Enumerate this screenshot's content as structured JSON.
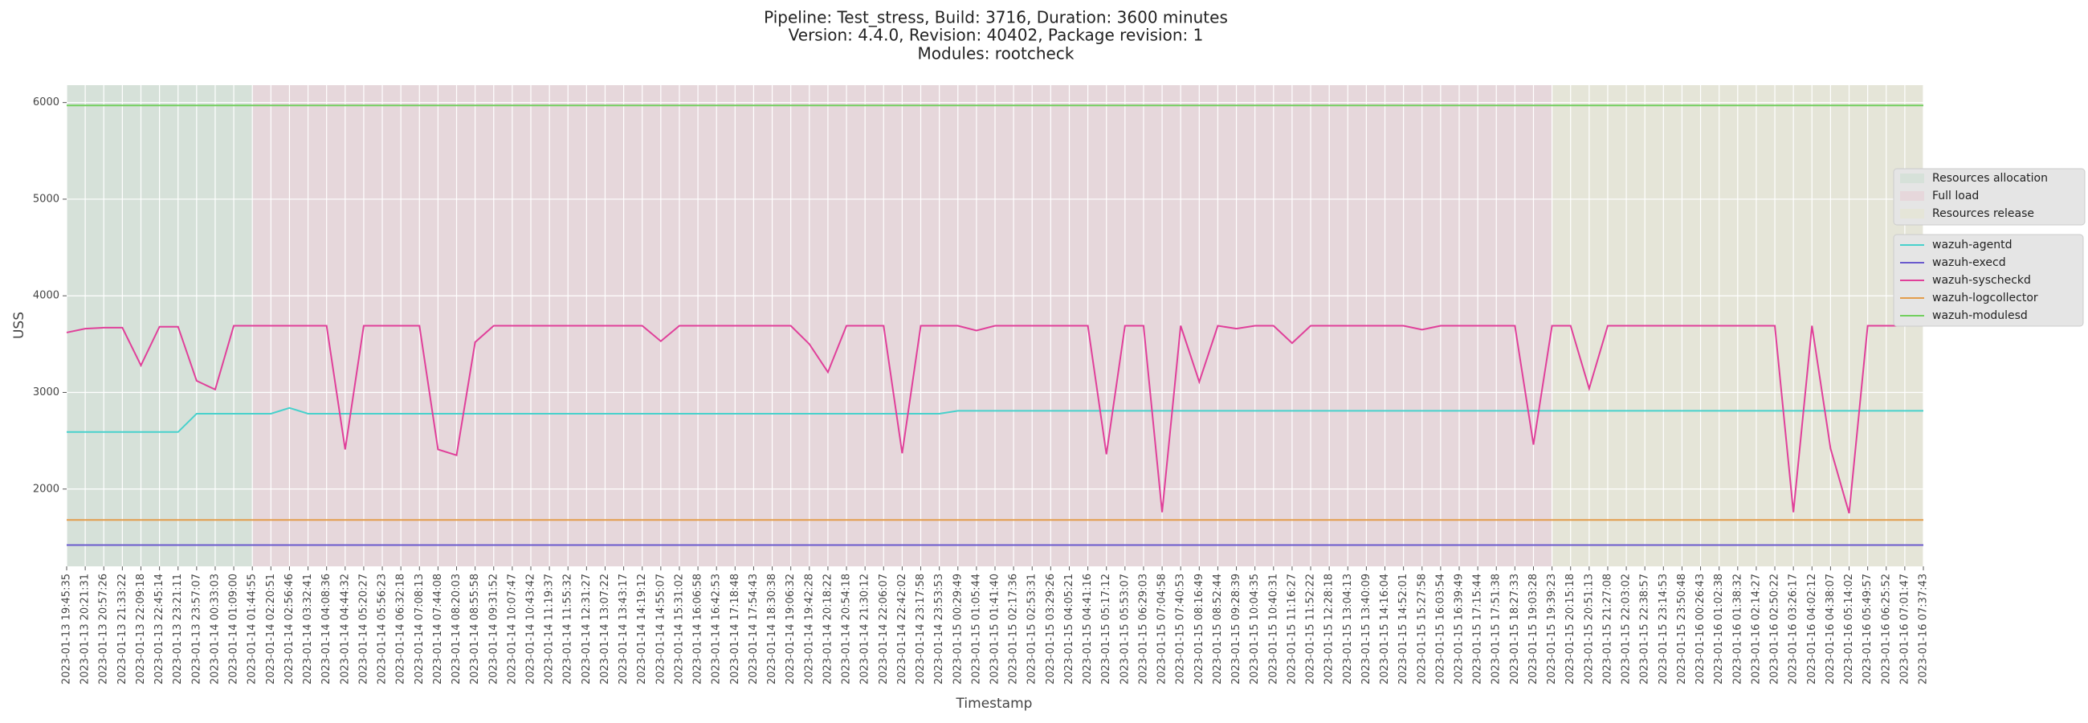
{
  "chart_data": {
    "type": "line",
    "title": [
      "Pipeline: Test_stress, Build: 3716, Duration: 3600 minutes",
      "Version: 4.4.0, Revision: 40402, Package revision: 1",
      "Modules: rootcheck"
    ],
    "xlabel": "Timestamp",
    "ylabel": "USS",
    "ylim": [
      1200,
      6180
    ],
    "yticks": [
      2000,
      3000,
      4000,
      5000,
      6000
    ],
    "grid": true,
    "categories": [
      "2023-01-13 19:45:35",
      "2023-01-13 20:21:31",
      "2023-01-13 20:57:26",
      "2023-01-13 21:33:22",
      "2023-01-13 22:09:18",
      "2023-01-13 22:45:14",
      "2023-01-13 23:21:11",
      "2023-01-13 23:57:07",
      "2023-01-14 00:33:03",
      "2023-01-14 01:09:00",
      "2023-01-14 01:44:55",
      "2023-01-14 02:20:51",
      "2023-01-14 02:56:46",
      "2023-01-14 03:32:41",
      "2023-01-14 04:08:36",
      "2023-01-14 04:44:32",
      "2023-01-14 05:20:27",
      "2023-01-14 05:56:23",
      "2023-01-14 06:32:18",
      "2023-01-14 07:08:13",
      "2023-01-14 07:44:08",
      "2023-01-14 08:20:03",
      "2023-01-14 08:55:58",
      "2023-01-14 09:31:52",
      "2023-01-14 10:07:47",
      "2023-01-14 10:43:42",
      "2023-01-14 11:19:37",
      "2023-01-14 11:55:32",
      "2023-01-14 12:31:27",
      "2023-01-14 13:07:22",
      "2023-01-14 13:43:17",
      "2023-01-14 14:19:12",
      "2023-01-14 14:55:07",
      "2023-01-14 15:31:02",
      "2023-01-14 16:06:58",
      "2023-01-14 16:42:53",
      "2023-01-14 17:18:48",
      "2023-01-14 17:54:43",
      "2023-01-14 18:30:38",
      "2023-01-14 19:06:32",
      "2023-01-14 19:42:28",
      "2023-01-14 20:18:22",
      "2023-01-14 20:54:18",
      "2023-01-14 21:30:12",
      "2023-01-14 22:06:07",
      "2023-01-14 22:42:02",
      "2023-01-14 23:17:58",
      "2023-01-14 23:53:53",
      "2023-01-15 00:29:49",
      "2023-01-15 01:05:44",
      "2023-01-15 01:41:40",
      "2023-01-15 02:17:36",
      "2023-01-15 02:53:31",
      "2023-01-15 03:29:26",
      "2023-01-15 04:05:21",
      "2023-01-15 04:41:16",
      "2023-01-15 05:17:12",
      "2023-01-15 05:53:07",
      "2023-01-15 06:29:03",
      "2023-01-15 07:04:58",
      "2023-01-15 07:40:53",
      "2023-01-15 08:16:49",
      "2023-01-15 08:52:44",
      "2023-01-15 09:28:39",
      "2023-01-15 10:04:35",
      "2023-01-15 10:40:31",
      "2023-01-15 11:16:27",
      "2023-01-15 11:52:22",
      "2023-01-15 12:28:18",
      "2023-01-15 13:04:13",
      "2023-01-15 13:40:09",
      "2023-01-15 14:16:04",
      "2023-01-15 14:52:01",
      "2023-01-15 15:27:58",
      "2023-01-15 16:03:54",
      "2023-01-15 16:39:49",
      "2023-01-15 17:15:44",
      "2023-01-15 17:51:38",
      "2023-01-15 18:27:33",
      "2023-01-15 19:03:28",
      "2023-01-15 19:39:23",
      "2023-01-15 20:15:18",
      "2023-01-15 20:51:13",
      "2023-01-15 21:27:08",
      "2023-01-15 22:03:02",
      "2023-01-15 22:38:57",
      "2023-01-15 23:14:53",
      "2023-01-15 23:50:48",
      "2023-01-16 00:26:43",
      "2023-01-16 01:02:38",
      "2023-01-16 01:38:32",
      "2023-01-16 02:14:27",
      "2023-01-16 02:50:22",
      "2023-01-16 03:26:17",
      "2023-01-16 04:02:12",
      "2023-01-16 04:38:07",
      "2023-01-16 05:14:02",
      "2023-01-16 05:49:57",
      "2023-01-16 06:25:52",
      "2023-01-16 07:01:47",
      "2023-01-16 07:37:43"
    ],
    "phases": [
      {
        "name": "Resources allocation",
        "color": "#d6e1d9",
        "start": "2023-01-13 19:45:35",
        "end": "2023-01-14 01:44:55"
      },
      {
        "name": "Full load",
        "color": "#e6d7db",
        "start": "2023-01-14 01:44:55",
        "end": "2023-01-15 19:39:23"
      },
      {
        "name": "Resources release",
        "color": "#e5e5d8",
        "start": "2023-01-15 19:39:23",
        "end": "2023-01-16 07:37:43"
      }
    ],
    "series": [
      {
        "name": "wazuh-agentd",
        "color": "#48d1cc",
        "values": [
          2590,
          2590,
          2590,
          2590,
          2590,
          2590,
          2590,
          2780,
          2780,
          2780,
          2780,
          2780,
          2840,
          2780,
          2780,
          2780,
          2780,
          2780,
          2780,
          2780,
          2780,
          2780,
          2780,
          2780,
          2780,
          2780,
          2780,
          2780,
          2780,
          2780,
          2780,
          2780,
          2780,
          2780,
          2780,
          2780,
          2780,
          2780,
          2780,
          2780,
          2780,
          2780,
          2780,
          2780,
          2780,
          2780,
          2780,
          2780,
          2810,
          2810,
          2810,
          2810,
          2810,
          2810,
          2810,
          2810,
          2810,
          2810,
          2810,
          2810,
          2810,
          2810,
          2810,
          2810,
          2810,
          2810,
          2810,
          2810,
          2810,
          2810,
          2810,
          2810,
          2810,
          2810,
          2810,
          2810,
          2810,
          2810,
          2810,
          2810,
          2810,
          2810,
          2810,
          2810,
          2810,
          2810,
          2810,
          2810,
          2810,
          2810,
          2810,
          2810,
          2810,
          2810,
          2810,
          2810,
          2810,
          2810,
          2810,
          2810,
          2810
        ]
      },
      {
        "name": "wazuh-execd",
        "color": "#6a5acd",
        "values": [
          1420,
          1420,
          1420,
          1420,
          1420,
          1420,
          1420,
          1420,
          1420,
          1420,
          1420,
          1420,
          1420,
          1420,
          1420,
          1420,
          1420,
          1420,
          1420,
          1420,
          1420,
          1420,
          1420,
          1420,
          1420,
          1420,
          1420,
          1420,
          1420,
          1420,
          1420,
          1420,
          1420,
          1420,
          1420,
          1420,
          1420,
          1420,
          1420,
          1420,
          1420,
          1420,
          1420,
          1420,
          1420,
          1420,
          1420,
          1420,
          1420,
          1420,
          1420,
          1420,
          1420,
          1420,
          1420,
          1420,
          1420,
          1420,
          1420,
          1420,
          1420,
          1420,
          1420,
          1420,
          1420,
          1420,
          1420,
          1420,
          1420,
          1420,
          1420,
          1420,
          1420,
          1420,
          1420,
          1420,
          1420,
          1420,
          1420,
          1420,
          1420,
          1420,
          1420,
          1420,
          1420,
          1420,
          1420,
          1420,
          1420,
          1420,
          1420,
          1420,
          1420,
          1420,
          1420,
          1420,
          1420,
          1420,
          1420,
          1420,
          1420
        ]
      },
      {
        "name": "wazuh-syscheckd",
        "color": "#e0409a",
        "values": [
          3620,
          3660,
          3670,
          3670,
          3280,
          3680,
          3680,
          3120,
          3030,
          3690,
          3690,
          3690,
          3690,
          3690,
          3690,
          2410,
          3690,
          3690,
          3690,
          3690,
          2410,
          2350,
          3520,
          3690,
          3690,
          3690,
          3690,
          3690,
          3690,
          3690,
          3690,
          3690,
          3530,
          3690,
          3690,
          3690,
          3690,
          3690,
          3690,
          3690,
          3500,
          3210,
          3690,
          3690,
          3690,
          2370,
          3690,
          3690,
          3690,
          3640,
          3690,
          3690,
          3690,
          3690,
          3690,
          3690,
          2360,
          3690,
          3690,
          1760,
          3690,
          3110,
          3690,
          3660,
          3690,
          3690,
          3510,
          3690,
          3690,
          3690,
          3690,
          3690,
          3690,
          3650,
          3690,
          3690,
          3690,
          3690,
          3690,
          2460,
          3690,
          3690,
          3040,
          3690,
          3690,
          3690,
          3690,
          3690,
          3690,
          3690,
          3690,
          3690,
          3690,
          1760,
          3690,
          2420,
          1750,
          3690,
          3690,
          3690,
          3690
        ]
      },
      {
        "name": "wazuh-logcollector",
        "color": "#e39d4c",
        "values": [
          1680,
          1680,
          1680,
          1680,
          1680,
          1680,
          1680,
          1680,
          1680,
          1680,
          1680,
          1680,
          1680,
          1680,
          1680,
          1680,
          1680,
          1680,
          1680,
          1680,
          1680,
          1680,
          1680,
          1680,
          1680,
          1680,
          1680,
          1680,
          1680,
          1680,
          1680,
          1680,
          1680,
          1680,
          1680,
          1680,
          1680,
          1680,
          1680,
          1680,
          1680,
          1680,
          1680,
          1680,
          1680,
          1680,
          1680,
          1680,
          1680,
          1680,
          1680,
          1680,
          1680,
          1680,
          1680,
          1680,
          1680,
          1680,
          1680,
          1680,
          1680,
          1680,
          1680,
          1680,
          1680,
          1680,
          1680,
          1680,
          1680,
          1680,
          1680,
          1680,
          1680,
          1680,
          1680,
          1680,
          1680,
          1680,
          1680,
          1680,
          1680,
          1680,
          1680,
          1680,
          1680,
          1680,
          1680,
          1680,
          1680,
          1680,
          1680,
          1680,
          1680,
          1680,
          1680,
          1680,
          1680,
          1680,
          1680,
          1680,
          1680
        ]
      },
      {
        "name": "wazuh-modulesd",
        "color": "#72cf5e",
        "values": [
          5970,
          5970,
          5970,
          5970,
          5970,
          5970,
          5970,
          5970,
          5970,
          5970,
          5970,
          5970,
          5970,
          5970,
          5970,
          5970,
          5970,
          5970,
          5970,
          5970,
          5970,
          5970,
          5970,
          5970,
          5970,
          5970,
          5970,
          5970,
          5970,
          5970,
          5970,
          5970,
          5970,
          5970,
          5970,
          5970,
          5970,
          5970,
          5970,
          5970,
          5970,
          5970,
          5970,
          5970,
          5970,
          5970,
          5970,
          5970,
          5970,
          5970,
          5970,
          5970,
          5970,
          5970,
          5970,
          5970,
          5970,
          5970,
          5970,
          5970,
          5970,
          5970,
          5970,
          5970,
          5970,
          5970,
          5970,
          5970,
          5970,
          5970,
          5970,
          5970,
          5970,
          5970,
          5970,
          5970,
          5970,
          5970,
          5970,
          5970,
          5970,
          5970,
          5970,
          5970,
          5970,
          5970,
          5970,
          5970,
          5970,
          5970,
          5970,
          5970,
          5970,
          5970,
          5970,
          5970,
          5970,
          5970,
          5970,
          5970,
          5970
        ]
      }
    ]
  }
}
